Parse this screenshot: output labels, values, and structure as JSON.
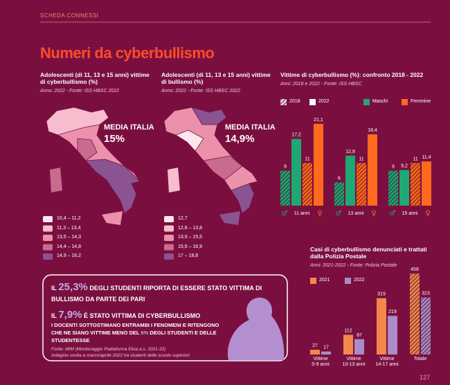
{
  "header": {
    "section": "SCHEDA CONNESSI",
    "title": "Numeri da cyberbullismo",
    "page": "127"
  },
  "maps": [
    {
      "title": "Adolescenti (di 11, 13 e 15 anni) vittime di cyberbullismo (%)",
      "subtitle": "Anno: 2022 - Fonte: ISS HBSC 2022",
      "average_label": "MEDIA ITALIA",
      "average": "15%",
      "legend": [
        {
          "label": "10,4 – 11,2",
          "color": "#fde6ee"
        },
        {
          "label": "11,3 – 13,4",
          "color": "#f7bccd"
        },
        {
          "label": "13,5 – 14,3",
          "color": "#ec91ab"
        },
        {
          "label": "14,4 – 14,8",
          "color": "#c86b8f"
        },
        {
          "label": "14,9 – 16,2",
          "color": "#8b5392"
        }
      ]
    },
    {
      "title": "Adolescenti (di 11, 13 e 15 anni) vittime di bullismo (%)",
      "subtitle": "Anno: 2022 - Fonte: ISS HBSC 2022",
      "average_label": "MEDIA ITALIA",
      "average": "14,9%",
      "legend": [
        {
          "label": "12,7",
          "color": "#fde6ee"
        },
        {
          "label": "12,8 – 13,8",
          "color": "#f7bccd"
        },
        {
          "label": "13,9 – 15,5",
          "color": "#ec91ab"
        },
        {
          "label": "15,6 – 16,9",
          "color": "#c86b8f"
        },
        {
          "label": "17 – 18,8",
          "color": "#8b5392"
        }
      ]
    }
  ],
  "chart_data": [
    {
      "type": "grouped_bar",
      "title": "Vittime di cyberbullismo (%): confronto 2018 - 2022",
      "subtitle": "Anni: 2018 e 2022 - Fonte: ISS HBSC",
      "categories": [
        "11 anni",
        "13 anni",
        "15 anni"
      ],
      "years": [
        "2018",
        "2022"
      ],
      "symbols": [
        "♂",
        "♀"
      ],
      "series": [
        {
          "name": "Maschi",
          "color": "#1fa874",
          "values": [
            [
              9,
              6,
              9
            ],
            [
              17.2,
              12.9,
              9.2
            ]
          ],
          "value_labels": [
            [
              "9",
              "6",
              "9"
            ],
            [
              "17,2",
              "12,9",
              "9,2"
            ]
          ]
        },
        {
          "name": "Femmine",
          "color": "#ff6a1c",
          "values": [
            [
              11,
              11,
              11
            ],
            [
              21.1,
              18.4,
              11.4
            ]
          ],
          "value_labels": [
            [
              "11",
              "11",
              "11"
            ],
            [
              "21,1",
              "18,4",
              "11,4"
            ]
          ]
        }
      ]
    },
    {
      "type": "bar",
      "title": "Casi di cyberbullismo denunciati e trattati dalla Polizia Postale",
      "subtitle": "Anni: 2021-2022 - Fonte: Polizia Postale",
      "categories": [
        "Vittime\n0-9 anni",
        "Vittime\n10-13 anni",
        "Vittime\n14-17 anni",
        "Totale"
      ],
      "series": [
        {
          "name": "2021",
          "color": "#f4874b",
          "values": [
            27,
            112,
            319,
            458
          ]
        },
        {
          "name": "2022",
          "color": "#aa8cc6",
          "values": [
            17,
            87,
            219,
            323
          ]
        }
      ]
    }
  ],
  "callout": {
    "lines": [
      [
        "IL ",
        "25,3%",
        " DEGLI STUDENTI RIPORTA DI ESSERE STATO VITTIMA DI BULLISMO DA PARTE DEI PARI"
      ],
      [
        "IL ",
        "7,9%",
        " È STATO VITTIMA DI CYBERBULLISMO"
      ],
      [
        "I DOCENTI SOTTOSTIMANO ENTRAMBI I FENOMENI E RITENGONO CHE NE SIANO VITTIME MENO DEL ",
        "6%",
        " DEGLI STUDENTI E DELLE STUDENTESSE"
      ]
    ],
    "source": "Fonte: MIM (Monitoraggio Piattaforma Elisa a.s. 2021-22)",
    "note": "Indagine svolta a marzo/aprile 2022 tra studenti delle scuole superiori"
  }
}
